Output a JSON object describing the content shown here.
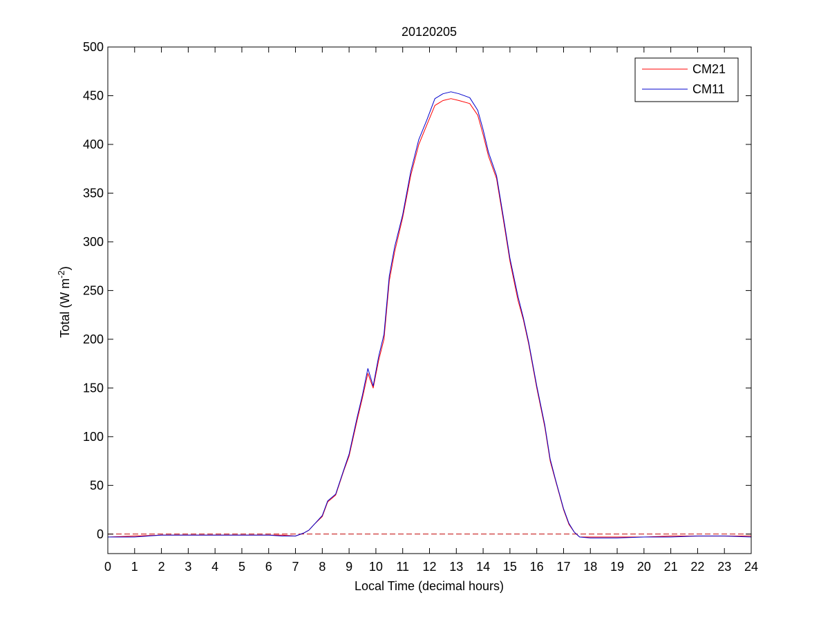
{
  "chart_data": {
    "type": "line",
    "title": "20120205",
    "xlabel": "Local Time (decimal hours)",
    "ylabel": "Total (W m",
    "ylabel_sup": "-2",
    "ylabel_close": ")",
    "xlim": [
      0,
      24
    ],
    "ylim": [
      -20,
      500
    ],
    "x_ticks": [
      0,
      1,
      2,
      3,
      4,
      5,
      6,
      7,
      8,
      9,
      10,
      11,
      12,
      13,
      14,
      15,
      16,
      17,
      18,
      19,
      20,
      21,
      22,
      23,
      24
    ],
    "x_tick_labels": [
      "0",
      "1",
      "2",
      "3",
      "4",
      "5",
      "6",
      "7",
      "8",
      "9",
      "10",
      "11",
      "12",
      "13",
      "14",
      "15",
      "16",
      "17",
      "18",
      "19",
      "20",
      "21",
      "22",
      "23",
      "24"
    ],
    "y_ticks": [
      0,
      50,
      100,
      150,
      200,
      250,
      300,
      350,
      400,
      450,
      500
    ],
    "y_tick_labels": [
      "0",
      "50",
      "100",
      "150",
      "200",
      "250",
      "300",
      "350",
      "400",
      "450",
      "500"
    ],
    "grid": false,
    "legend_position": "top-right",
    "reference_line": {
      "y": 0,
      "color": "#c00000",
      "style": "dashed"
    },
    "series": [
      {
        "name": "CM21",
        "color": "#ff0000",
        "x": [
          0,
          1,
          2,
          3,
          4,
          5,
          6,
          6.5,
          7,
          7.3,
          7.5,
          7.7,
          8,
          8.2,
          8.5,
          8.8,
          9,
          9.3,
          9.5,
          9.7,
          9.9,
          10.1,
          10.3,
          10.5,
          10.7,
          11,
          11.3,
          11.6,
          11.9,
          12.2,
          12.5,
          12.8,
          13.1,
          13.5,
          13.8,
          14,
          14.2,
          14.5,
          14.8,
          15,
          15.3,
          15.5,
          15.7,
          16,
          16.3,
          16.5,
          16.7,
          17,
          17.2,
          17.4,
          17.6,
          18,
          19,
          20,
          21,
          22,
          23,
          24
        ],
        "y": [
          -3,
          -2,
          -1,
          -1,
          -1,
          -1,
          -1,
          -1,
          -2,
          1,
          4,
          10,
          18,
          33,
          40,
          65,
          80,
          117,
          140,
          165,
          150,
          178,
          200,
          260,
          290,
          325,
          368,
          400,
          420,
          440,
          445,
          447,
          445,
          442,
          430,
          410,
          388,
          365,
          315,
          280,
          240,
          220,
          195,
          150,
          110,
          75,
          55,
          25,
          10,
          2,
          -3,
          -3,
          -3,
          -3,
          -2,
          -2,
          -2,
          -2
        ]
      },
      {
        "name": "CM11",
        "color": "#0000cc",
        "x": [
          0,
          1,
          2,
          3,
          4,
          5,
          6,
          6.5,
          7,
          7.3,
          7.5,
          7.7,
          8,
          8.2,
          8.5,
          8.8,
          9,
          9.3,
          9.5,
          9.7,
          9.9,
          10.1,
          10.3,
          10.5,
          10.7,
          11,
          11.3,
          11.6,
          11.9,
          12.2,
          12.5,
          12.8,
          13.1,
          13.5,
          13.8,
          14,
          14.2,
          14.5,
          14.8,
          15,
          15.3,
          15.5,
          15.7,
          16,
          16.3,
          16.5,
          16.7,
          17,
          17.2,
          17.4,
          17.6,
          18,
          19,
          20,
          21,
          22,
          23,
          24
        ],
        "y": [
          -3,
          -3,
          -1,
          -1,
          -1,
          -1,
          -1,
          -2,
          -2,
          1,
          4,
          10,
          19,
          34,
          41,
          66,
          82,
          120,
          143,
          170,
          152,
          182,
          205,
          265,
          295,
          328,
          372,
          405,
          425,
          447,
          452,
          454,
          452,
          448,
          435,
          415,
          392,
          368,
          318,
          283,
          244,
          222,
          197,
          152,
          112,
          77,
          56,
          26,
          11,
          2,
          -3,
          -4,
          -4,
          -3,
          -3,
          -2,
          -2,
          -3
        ]
      }
    ]
  }
}
